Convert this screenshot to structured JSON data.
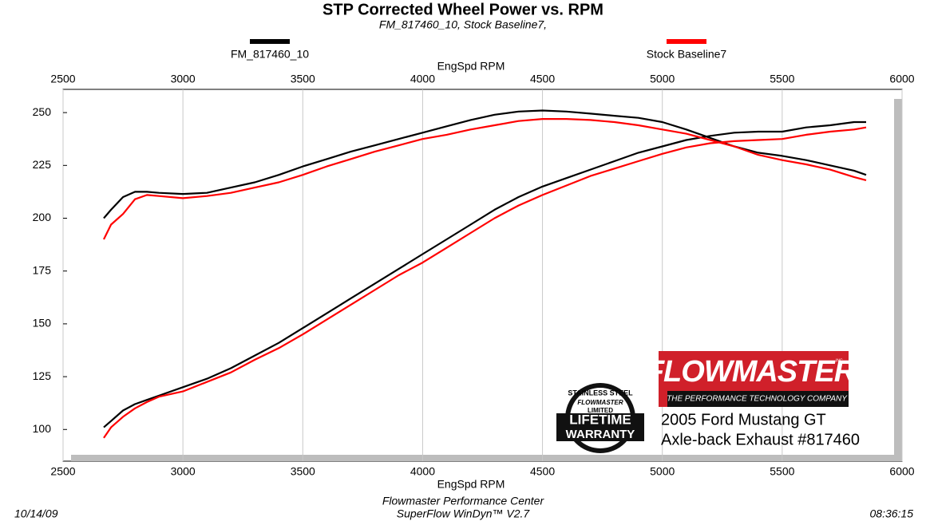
{
  "chart_data": {
    "type": "line",
    "title": "STP Corrected Wheel Power vs. RPM",
    "subtitle": "FM_817460_10, Stock Baseline7,",
    "xlabel": "EngSpd  RPM",
    "xlim": [
      2500,
      6000
    ],
    "xticks": [
      2500,
      3000,
      3500,
      4000,
      4500,
      5000,
      5500,
      6000
    ],
    "ylim": [
      85,
      261
    ],
    "yticks": [
      100,
      125,
      150,
      175,
      200,
      225,
      250
    ],
    "grid": true,
    "x": [
      2670,
      2700,
      2750,
      2800,
      2850,
      2900,
      3000,
      3100,
      3200,
      3300,
      3400,
      3500,
      3600,
      3700,
      3800,
      3900,
      4000,
      4100,
      4200,
      4300,
      4400,
      4500,
      4600,
      4700,
      4800,
      4900,
      5000,
      5100,
      5200,
      5300,
      5400,
      5500,
      5600,
      5700,
      5800,
      5850
    ],
    "series": [
      {
        "name": "FM_817460_10",
        "color": "#000000",
        "lines": [
          {
            "values": [
              200,
              204,
              210,
              212.5,
              212.5,
              212,
              211.5,
              212,
              214.5,
              217,
              220.5,
              224.5,
              228,
              231.5,
              234.5,
              237.5,
              240.5,
              243.5,
              246.5,
              249,
              250.5,
              251,
              250.5,
              249.5,
              248.5,
              247.5,
              245.5,
              242,
              238,
              234,
              231,
              229.5,
              227.5,
              225,
              222.5,
              220.5
            ]
          },
          {
            "values": [
              101,
              104,
              109,
              112,
              114,
              116,
              120,
              124,
              129,
              135,
              141,
              148,
              155,
              162,
              169,
              176,
              183,
              190,
              197,
              204,
              210,
              215,
              219,
              223,
              227,
              231,
              234,
              237,
              239,
              240.5,
              241,
              241,
              243,
              244,
              245.5,
              245.5
            ]
          }
        ]
      },
      {
        "name": "Stock Baseline7",
        "color": "#ff0000",
        "lines": [
          {
            "values": [
              190,
              197,
              202,
              209,
              211,
              210.5,
              209.5,
              210.5,
              212,
              214.5,
              217,
              220.5,
              224.5,
              228,
              231.5,
              234.5,
              237.5,
              239.5,
              242,
              244,
              246,
              247,
              247,
              246.5,
              245.5,
              244,
              242,
              240,
              237,
              234,
              230,
              227.5,
              225.5,
              223,
              219.5,
              218
            ]
          },
          {
            "values": [
              96,
              101,
              106,
              110,
              113,
              115.5,
              118,
              122.5,
              127,
              133,
              138.5,
              145,
              152,
              159,
              166,
              173,
              179,
              186,
              193,
              200,
              206,
              211,
              215.5,
              220,
              223.5,
              227,
              230.5,
              233.5,
              235.5,
              236.5,
              237,
              237.5,
              239.5,
              241,
              242,
              243
            ]
          }
        ]
      }
    ],
    "logo": {
      "brand": "FLOWMASTER",
      "inc": "INC.",
      "tagline": "THE PERFORMANCE TECHNOLOGY COMPANY",
      "caption": [
        "2005 Ford Mustang GT",
        "Axle-back Exhaust #817460"
      ]
    },
    "badge": [
      "STAINLESS STEEL",
      "FLOWMASTER",
      "LIMITED",
      "LIFETIME",
      "WARRANTY"
    ],
    "footer": {
      "date": "10/14/09",
      "time": "08:36:15",
      "center": [
        "Flowmaster Performance Center",
        "SuperFlow WinDyn™ V2.7"
      ]
    }
  }
}
